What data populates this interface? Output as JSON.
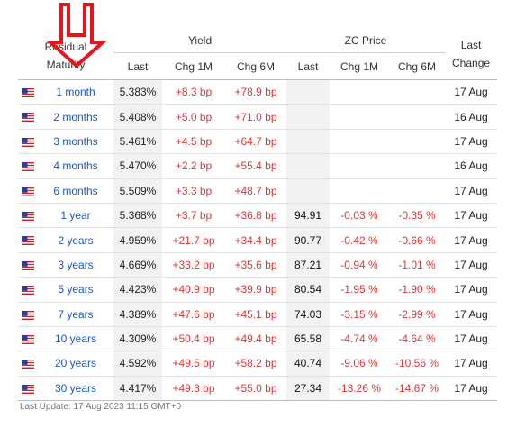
{
  "headers": {
    "residual_maturity": "Residual Maturity",
    "yield_group": "Yield",
    "zc_group": "ZC Price",
    "last_change": "Last Change",
    "yield_last": "Last",
    "yield_chg1m": "Chg 1M",
    "yield_chg6m": "Chg 6M",
    "zc_last": "Last",
    "zc_chg1m": "Chg 1M",
    "zc_chg6m": "Chg 6M"
  },
  "rows": [
    {
      "maturity": "1 month",
      "yield": "5.383%",
      "chg1m": "+8.3 bp",
      "chg6m": "+78.9 bp",
      "zc": "",
      "zc1m": "",
      "zc6m": "",
      "date": "17 Aug"
    },
    {
      "maturity": "2 months",
      "yield": "5.408%",
      "chg1m": "+5.0 bp",
      "chg6m": "+71.0 bp",
      "zc": "",
      "zc1m": "",
      "zc6m": "",
      "date": "16 Aug"
    },
    {
      "maturity": "3 months",
      "yield": "5.461%",
      "chg1m": "+4.5 bp",
      "chg6m": "+64.7 bp",
      "zc": "",
      "zc1m": "",
      "zc6m": "",
      "date": "17 Aug"
    },
    {
      "maturity": "4 months",
      "yield": "5.470%",
      "chg1m": "+2.2 bp",
      "chg6m": "+55.4 bp",
      "zc": "",
      "zc1m": "",
      "zc6m": "",
      "date": "16 Aug"
    },
    {
      "maturity": "6 months",
      "yield": "5.509%",
      "chg1m": "+3.3 bp",
      "chg6m": "+48.7 bp",
      "zc": "",
      "zc1m": "",
      "zc6m": "",
      "date": "17 Aug"
    },
    {
      "maturity": "1 year",
      "yield": "5.368%",
      "chg1m": "+3.7 bp",
      "chg6m": "+36.8 bp",
      "zc": "94.91",
      "zc1m": "-0.03 %",
      "zc6m": "-0.35 %",
      "date": "17 Aug"
    },
    {
      "maturity": "2 years",
      "yield": "4.959%",
      "chg1m": "+21.7 bp",
      "chg6m": "+34.4 bp",
      "zc": "90.77",
      "zc1m": "-0.42 %",
      "zc6m": "-0.66 %",
      "date": "17 Aug"
    },
    {
      "maturity": "3 years",
      "yield": "4.669%",
      "chg1m": "+33.2 bp",
      "chg6m": "+35.6 bp",
      "zc": "87.21",
      "zc1m": "-0.94 %",
      "zc6m": "-1.01 %",
      "date": "17 Aug"
    },
    {
      "maturity": "5 years",
      "yield": "4.423%",
      "chg1m": "+40.9 bp",
      "chg6m": "+39.9 bp",
      "zc": "80.54",
      "zc1m": "-1.95 %",
      "zc6m": "-1.90 %",
      "date": "17 Aug"
    },
    {
      "maturity": "7 years",
      "yield": "4.389%",
      "chg1m": "+47.6 bp",
      "chg6m": "+45.1 bp",
      "zc": "74.03",
      "zc1m": "-3.15 %",
      "zc6m": "-2.99 %",
      "date": "17 Aug"
    },
    {
      "maturity": "10 years",
      "yield": "4.309%",
      "chg1m": "+50.4 bp",
      "chg6m": "+49.4 bp",
      "zc": "65.58",
      "zc1m": "-4.74 %",
      "zc6m": "-4.64 %",
      "date": "17 Aug"
    },
    {
      "maturity": "20 years",
      "yield": "4.592%",
      "chg1m": "+49.5 bp",
      "chg6m": "+58.2 bp",
      "zc": "40.74",
      "zc1m": "-9.06 %",
      "zc6m": "-10.56 %",
      "date": "17 Aug"
    },
    {
      "maturity": "30 years",
      "yield": "4.417%",
      "chg1m": "+49.3 bp",
      "chg6m": "+55.0 bp",
      "zc": "27.34",
      "zc1m": "-13.26 %",
      "zc6m": "-14.67 %",
      "date": "17 Aug"
    }
  ],
  "footer": "Last Update: 17 Aug 2023 11:15 GMT+0",
  "colors": {
    "link": "#1a56c8",
    "change": "#d9383a",
    "arrow": "#e8141b",
    "shade": "#f2f2f2"
  },
  "icons": {
    "flag": "us-flag-icon",
    "annotation": "down-arrow-icon"
  }
}
